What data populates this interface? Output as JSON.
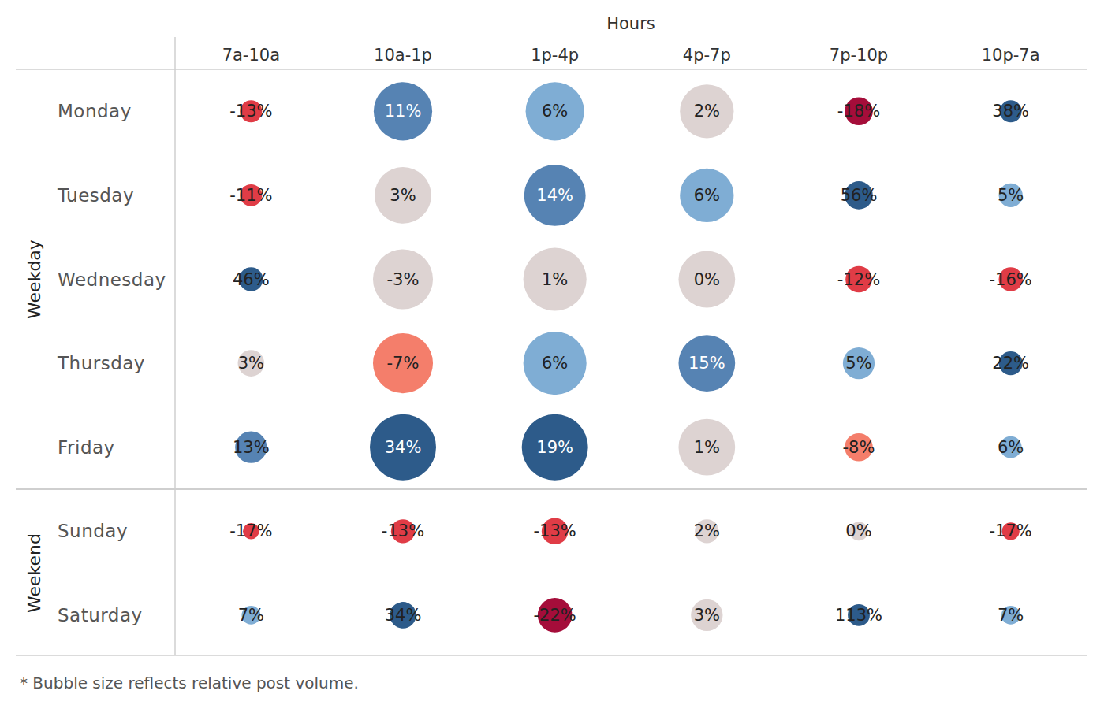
{
  "chart_data": {
    "type": "bubble_matrix",
    "x_label": "Hours",
    "columns": [
      "7a-10a",
      "10a-1p",
      "1p-4p",
      "4p-7p",
      "7p-10p",
      "10p-7a"
    ],
    "groups": [
      {
        "name": "Weekday",
        "rows": [
          "Monday",
          "Tuesday",
          "Wednesday",
          "Thursday",
          "Friday"
        ]
      },
      {
        "name": "Weekend",
        "rows": [
          "Sunday",
          "Saturday"
        ]
      }
    ],
    "values": [
      [
        -13,
        11,
        6,
        2,
        -18,
        38
      ],
      [
        -11,
        3,
        14,
        6,
        56,
        5
      ],
      [
        46,
        -3,
        1,
        0,
        -12,
        -16
      ],
      [
        3,
        -7,
        6,
        15,
        5,
        22
      ],
      [
        13,
        34,
        19,
        1,
        -8,
        6
      ],
      [
        -17,
        -13,
        -13,
        2,
        0,
        -17
      ],
      [
        7,
        34,
        -22,
        3,
        113,
        7
      ]
    ],
    "value_labels": [
      [
        "-13%",
        "11%",
        "6%",
        "2%",
        "-18%",
        "38%"
      ],
      [
        "-11%",
        "3%",
        "14%",
        "6%",
        "56%",
        "5%"
      ],
      [
        "46%",
        "-3%",
        "1%",
        "0%",
        "-12%",
        "-16%"
      ],
      [
        "3%",
        "-7%",
        "6%",
        "15%",
        "5%",
        "22%"
      ],
      [
        "13%",
        "34%",
        "19%",
        "1%",
        "-8%",
        "6%"
      ],
      [
        "-17%",
        "-13%",
        "-13%",
        "2%",
        "0%",
        "-17%"
      ],
      [
        "7%",
        "34%",
        "-22%",
        "3%",
        "113%",
        "7%"
      ]
    ],
    "sizes": [
      [
        11,
        78,
        78,
        66,
        18,
        11
      ],
      [
        11,
        73,
        86,
        66,
        18,
        13
      ],
      [
        13,
        82,
        91,
        73,
        16,
        13
      ],
      [
        16,
        82,
        91,
        73,
        23,
        13
      ],
      [
        23,
        100,
        100,
        73,
        18,
        11
      ],
      [
        6,
        13,
        16,
        13,
        8,
        7
      ],
      [
        8,
        16,
        27,
        23,
        11,
        8
      ]
    ],
    "colors": [
      [
        "#e03c46",
        "#5683b3",
        "#7fadd4",
        "#ddd3d2",
        "#a50d3a",
        "#2d5b8a"
      ],
      [
        "#e03c46",
        "#ddd3d2",
        "#5683b3",
        "#7fadd4",
        "#2d5b8a",
        "#7fadd4"
      ],
      [
        "#2d5b8a",
        "#ddd3d2",
        "#ddd3d2",
        "#ddd3d2",
        "#e03c46",
        "#e03c46"
      ],
      [
        "#ddd3d2",
        "#f47e6b",
        "#7fadd4",
        "#5683b3",
        "#7fadd4",
        "#2d5b8a"
      ],
      [
        "#5683b3",
        "#2d5b8a",
        "#2d5b8a",
        "#ddd3d2",
        "#f47e6b",
        "#7fadd4"
      ],
      [
        "#e03c46",
        "#e03c46",
        "#e03c46",
        "#ddd3d2",
        "#ddd3d2",
        "#e03c46"
      ],
      [
        "#7fadd4",
        "#2d5b8a",
        "#a50d3a",
        "#ddd3d2",
        "#2d5b8a",
        "#7fadd4"
      ]
    ],
    "data_labels": true,
    "footnote": "* Bubble size reflects relative post volume."
  }
}
